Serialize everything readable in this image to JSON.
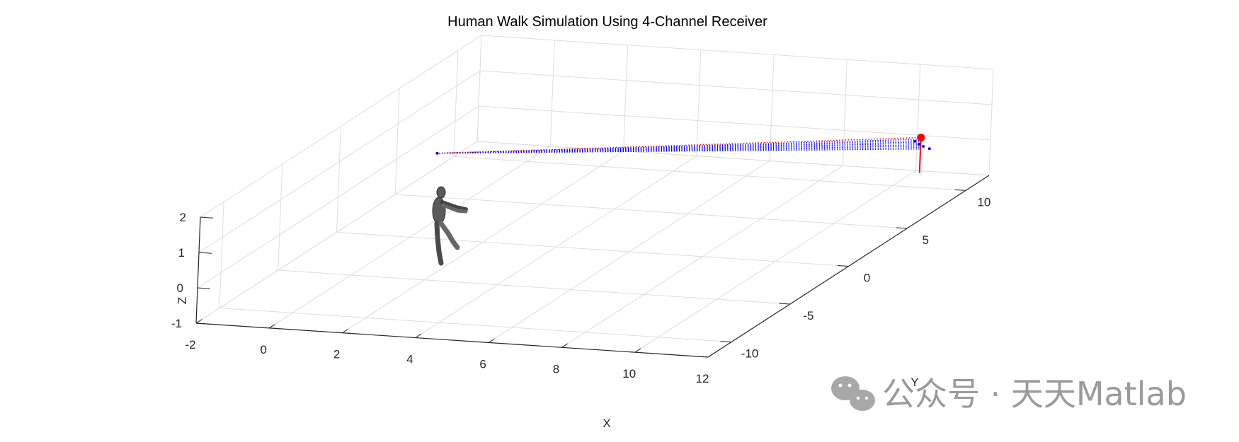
{
  "chart_data": {
    "type": "scatter3d",
    "title": "Human Walk Simulation Using 4-Channel Receiver",
    "xlabel": "X",
    "ylabel": "Y",
    "zlabel": "Z",
    "xlim": [
      -2,
      12
    ],
    "ylim": [
      -12,
      12
    ],
    "zlim": [
      -1,
      2
    ],
    "xticks": [
      "-2",
      "0",
      "2",
      "4",
      "6",
      "8",
      "10",
      "12"
    ],
    "yticks": [
      "-10",
      "-5",
      "0",
      "5",
      "10"
    ],
    "zticks": [
      "-1",
      "0",
      "1",
      "2"
    ],
    "grid": true,
    "colors": {
      "receiver": "#ff0000",
      "multipath": "#0000ff",
      "figure": "#555555",
      "grid": "#dddddd",
      "axis": "#262626"
    },
    "receiver": {
      "x": 11.5,
      "y": 7.5,
      "z": 1.0,
      "stem_base_z": 0
    },
    "walker_hand": {
      "x": 0.5,
      "y": 0.5,
      "z": 1.3
    },
    "direct_path": {
      "name": "",
      "from": "receiver",
      "to": "walker_hand",
      "style": "dotted",
      "color": "#ff0000"
    },
    "multipath_rays": {
      "count": 8,
      "style": "dotted",
      "color": "#0000ff"
    },
    "receiver_channel_points": [
      {
        "x": 11.4,
        "y": 7.3,
        "z": 0.93
      },
      {
        "x": 11.55,
        "y": 7.2,
        "z": 0.88
      },
      {
        "x": 11.7,
        "y": 7.1,
        "z": 0.85
      },
      {
        "x": 11.9,
        "y": 7.0,
        "z": 0.82
      }
    ]
  },
  "watermark": {
    "text": "公众号 · 天天Matlab",
    "icon": "wechat-icon"
  }
}
